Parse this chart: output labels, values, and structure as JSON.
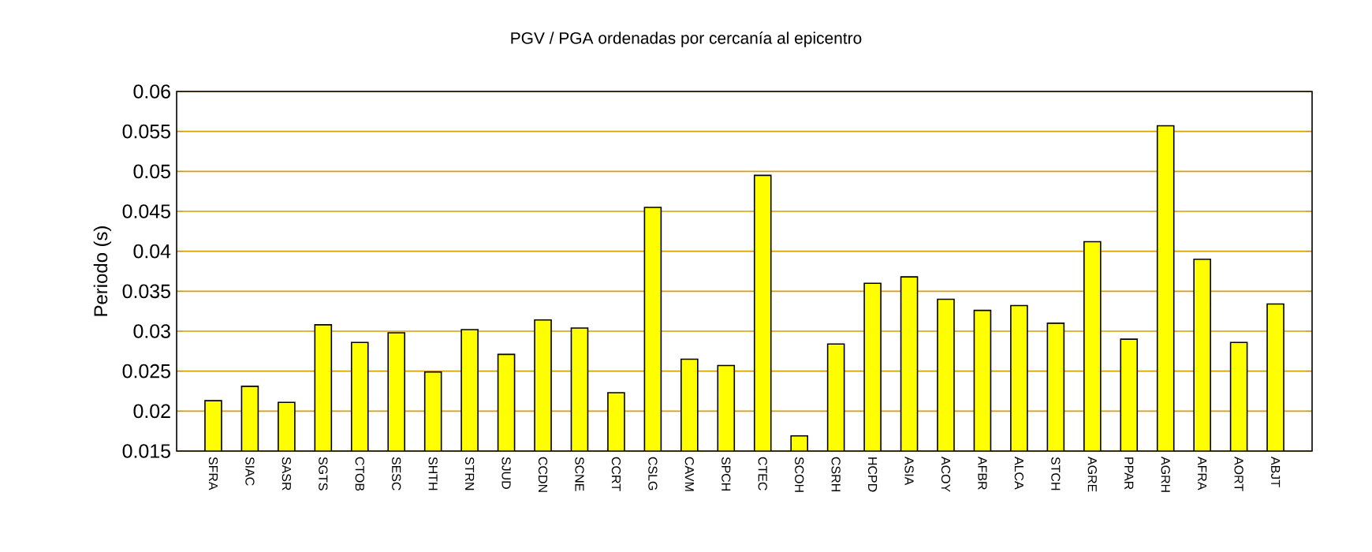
{
  "chart_data": {
    "type": "bar",
    "title": "PGV / PGA ordenadas por cercanía al epicentro",
    "ylabel": "Periodo (s)",
    "categories": [
      "SFRA",
      "SIAC",
      "SASR",
      "SGTS",
      "CTOB",
      "SESC",
      "SHTH",
      "STRN",
      "SJUD",
      "CCDN",
      "SCNE",
      "CCRT",
      "CSLG",
      "CAVM",
      "SPCH",
      "CTEC",
      "SCOH",
      "CSRH",
      "HCPD",
      "ASIA",
      "ACOY",
      "AFBR",
      "ALCA",
      "STCH",
      "AGRE",
      "PPAR",
      "AGRH",
      "AFRA",
      "AORT",
      "ABJT"
    ],
    "values": [
      0.0213,
      0.0231,
      0.0211,
      0.0308,
      0.0286,
      0.0298,
      0.0249,
      0.0302,
      0.0271,
      0.0314,
      0.0304,
      0.0223,
      0.0455,
      0.0265,
      0.0257,
      0.0495,
      0.0169,
      0.0284,
      0.036,
      0.0368,
      0.034,
      0.0326,
      0.0332,
      0.031,
      0.0412,
      0.029,
      0.0557,
      0.039,
      0.0286,
      0.0334
    ],
    "color": "#ffff00",
    "ylim": [
      0.015,
      0.06
    ],
    "yticks": [
      0.015,
      0.02,
      0.025,
      0.03,
      0.035,
      0.04,
      0.045,
      0.05,
      0.055,
      0.06
    ],
    "grid": "y"
  }
}
